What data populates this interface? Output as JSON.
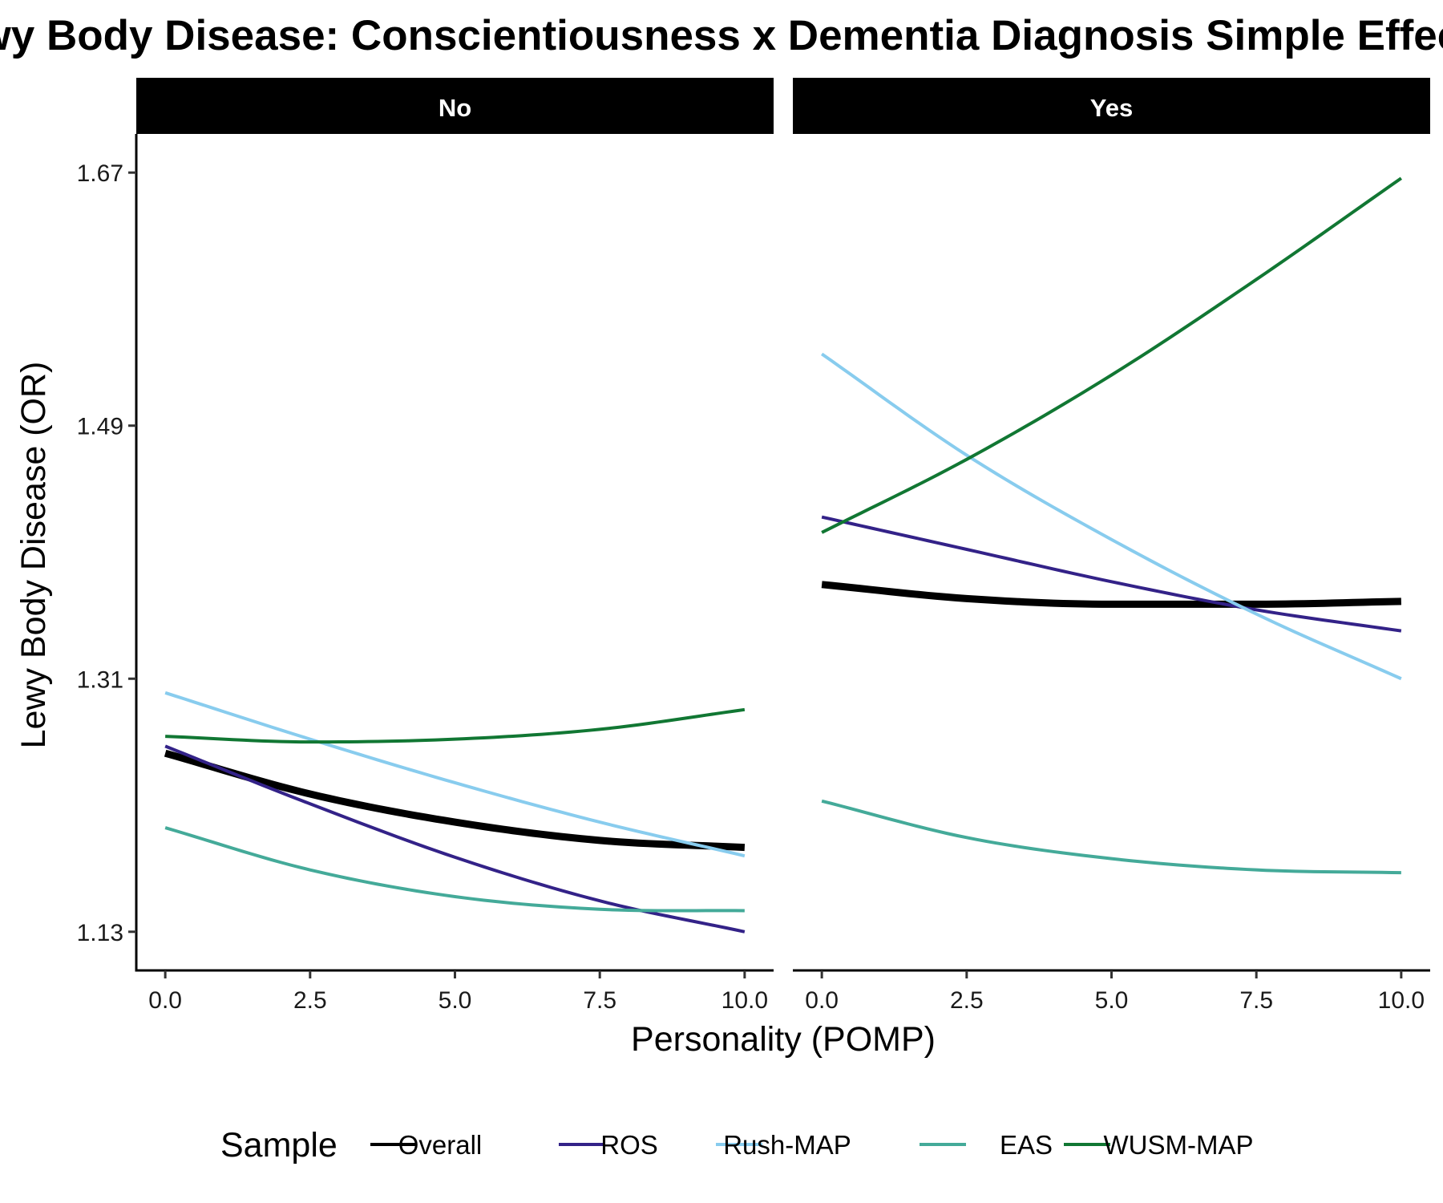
{
  "chart_data": {
    "type": "line",
    "title": "Lewy Body Disease: Conscientiousness x Dementia Diagnosis Simple Effects",
    "xlabel": "Personality (POMP)",
    "ylabel": "Lewy Body Disease (OR)",
    "xlim": [
      -0.5,
      10.5
    ],
    "ylim": [
      1.1025,
      1.6975
    ],
    "x_ticks": [
      0.0,
      2.5,
      5.0,
      7.5,
      10.0
    ],
    "x_tick_labels": [
      "0.0",
      "2.5",
      "5.0",
      "7.5",
      "10.0"
    ],
    "y_ticks": [
      1.13,
      1.31,
      1.49,
      1.67
    ],
    "y_tick_labels": [
      "1.13",
      "1.31",
      "1.49",
      "1.67"
    ],
    "grid": false,
    "legend": {
      "title": "Sample",
      "position": "bottom",
      "entries": [
        "Overall",
        "ROS",
        "Rush-MAP",
        "EAS",
        "WUSM-MAP"
      ]
    },
    "colors": {
      "Overall": "#000000",
      "ROS": "#332288",
      "Rush-MAP": "#88CCEE",
      "EAS": "#44AA99",
      "WUSM-MAP": "#117733"
    },
    "line_widths": {
      "Overall": 9,
      "ROS": 4,
      "Rush-MAP": 4,
      "EAS": 4,
      "WUSM-MAP": 4
    },
    "panels": [
      {
        "strip": "No",
        "x": [
          0,
          2.5,
          5,
          7.5,
          10
        ],
        "series": [
          {
            "name": "Overall",
            "values": [
              1.257,
              1.228,
              1.208,
              1.195,
              1.19
            ]
          },
          {
            "name": "ROS",
            "values": [
              1.262,
              1.221,
              1.183,
              1.152,
              1.13
            ]
          },
          {
            "name": "Rush-MAP",
            "values": [
              1.3,
              1.267,
              1.236,
              1.208,
              1.184
            ]
          },
          {
            "name": "EAS",
            "values": [
              1.204,
              1.174,
              1.155,
              1.146,
              1.145
            ]
          },
          {
            "name": "WUSM-MAP",
            "values": [
              1.269,
              1.265,
              1.267,
              1.274,
              1.288
            ]
          }
        ]
      },
      {
        "strip": "Yes",
        "x": [
          0,
          2.5,
          5,
          7.5,
          10
        ],
        "series": [
          {
            "name": "Overall",
            "values": [
              1.377,
              1.367,
              1.363,
              1.363,
              1.365
            ]
          },
          {
            "name": "ROS",
            "values": [
              1.425,
              1.402,
              1.379,
              1.359,
              1.344
            ]
          },
          {
            "name": "Rush-MAP",
            "values": [
              1.541,
              1.469,
              1.409,
              1.356,
              1.31
            ]
          },
          {
            "name": "EAS",
            "values": [
              1.223,
              1.197,
              1.182,
              1.174,
              1.172
            ]
          },
          {
            "name": "WUSM-MAP",
            "values": [
              1.414,
              1.466,
              1.526,
              1.594,
              1.666
            ]
          }
        ]
      }
    ]
  }
}
